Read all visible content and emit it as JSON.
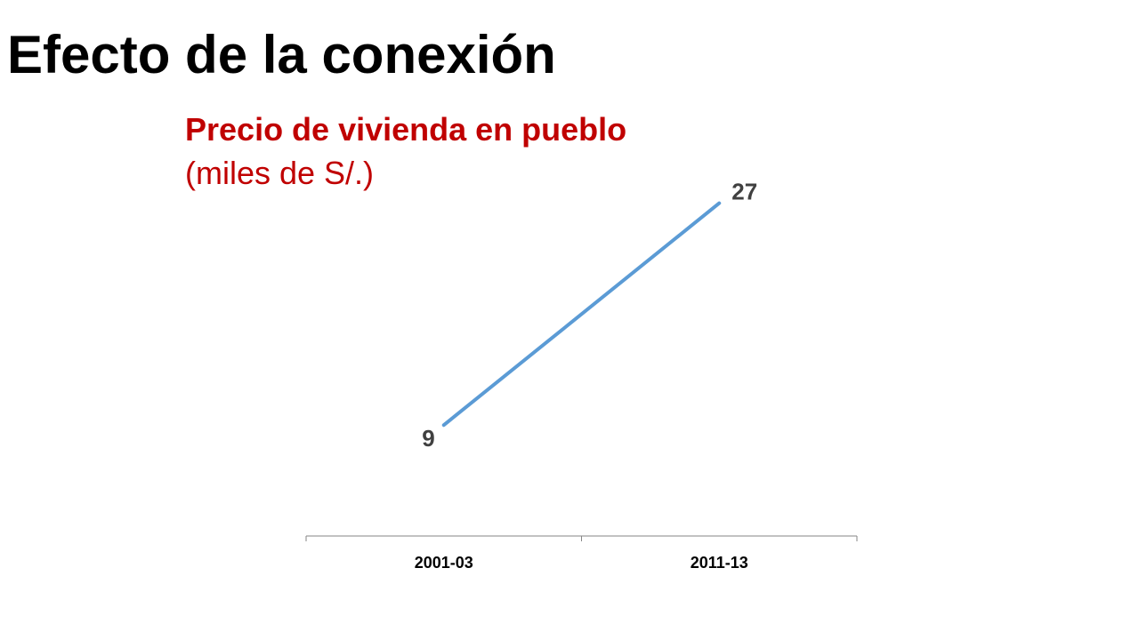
{
  "slide": {
    "title": "Efecto de la conexión"
  },
  "chart_data": {
    "type": "line",
    "title": "Precio de vivienda en pueblo",
    "subtitle": "(miles de S/.)",
    "categories": [
      "2001-03",
      "2011-13"
    ],
    "series": [
      {
        "values": [
          9,
          27
        ],
        "color": "#5b9bd5",
        "data_labels": [
          "9",
          "27"
        ]
      }
    ],
    "xlabel": "",
    "ylabel": "",
    "ylim": [
      0,
      30
    ],
    "y_axis_visible": false,
    "grid": false,
    "legend": "none",
    "title_color": "#c00000"
  }
}
